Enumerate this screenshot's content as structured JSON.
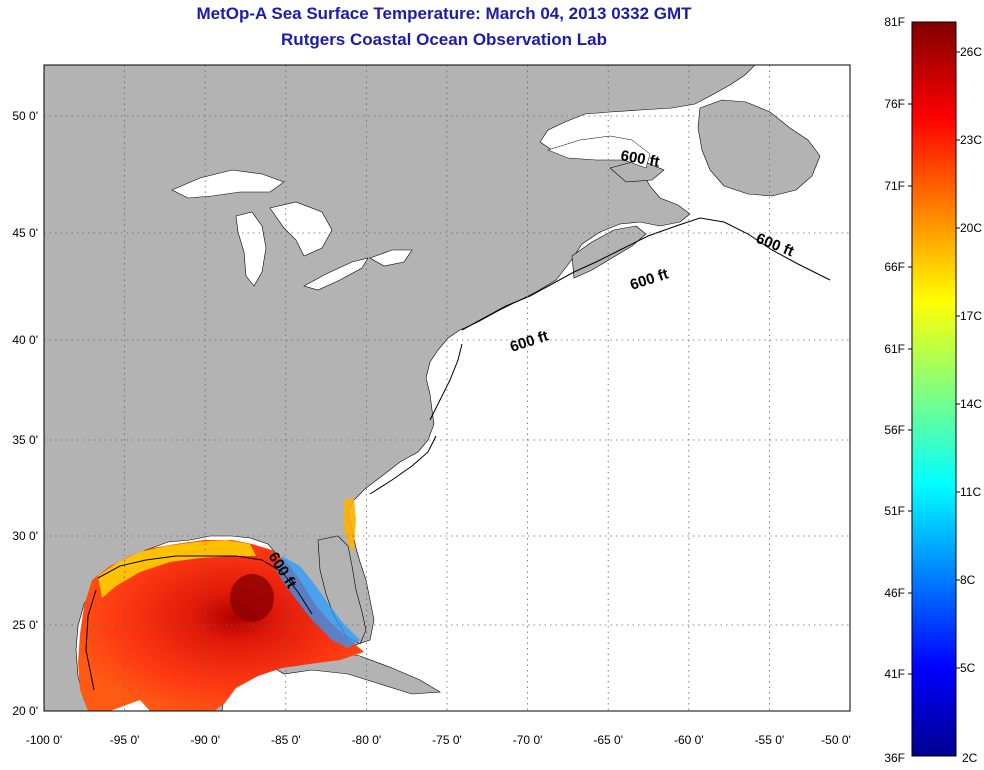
{
  "header": {
    "title": "MetOp-A Sea Surface Temperature:  March 04, 2013 0332 GMT",
    "subtitle": "Rutgers Coastal Ocean Observation Lab"
  },
  "map": {
    "x_ticks": [
      "-100 0'",
      "-95 0'",
      "-90 0'",
      "-85 0'",
      "-80 0'",
      "-75 0'",
      "-70 0'",
      "-65 0'",
      "-60 0'",
      "-55 0'",
      "-50 0'"
    ],
    "y_ticks": [
      "50 0'",
      "45 0'",
      "40 0'",
      "35 0'",
      "30 0'",
      "25 0'",
      "20 0'"
    ],
    "contour_labels": [
      "600 ft",
      "600 ft",
      "600 ft",
      "600 ft",
      "600 ft"
    ],
    "land_color": "#b3b3b3",
    "ocean_color": "#ffffff"
  },
  "colorbar": {
    "f_labels": [
      "81F",
      "76F",
      "71F",
      "66F",
      "61F",
      "56F",
      "51F",
      "46F",
      "41F",
      "36F"
    ],
    "c_labels": [
      "26C",
      "23C",
      "20C",
      "17C",
      "14C",
      "11C",
      "8C",
      "5C",
      "2C"
    ]
  }
}
